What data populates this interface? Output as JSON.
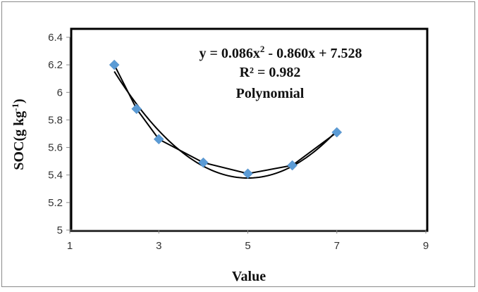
{
  "chart_data": {
    "type": "scatter",
    "xlabel": "Value",
    "ylabel_base": "SOC(g kg",
    "ylabel_exp": "-1",
    "ylabel_tail": ")",
    "xlim": [
      1,
      9
    ],
    "ylim": [
      5,
      6.4
    ],
    "x_ticks": [
      "1",
      "3",
      "5",
      "7",
      "9"
    ],
    "y_ticks": [
      "5",
      "5.2",
      "5.4",
      "5.6",
      "5.8",
      "6",
      "6.2",
      "6.4"
    ],
    "grid": false,
    "series": [
      {
        "x": [
          2,
          2.5,
          3,
          4,
          5,
          6,
          7
        ],
        "y": [
          6.2,
          5.88,
          5.66,
          5.49,
          5.41,
          5.47,
          5.71
        ],
        "marker": "diamond",
        "color": "#5b9bd5",
        "line": "connected"
      }
    ],
    "trendline": {
      "type": "polynomial",
      "coefficients": [
        0.086,
        -0.86,
        7.528
      ],
      "color": "#000000"
    },
    "annotations": {
      "equation_pre": "y = 0.086x",
      "equation_sup": "2",
      "equation_post": " - 0.860x + 7.528",
      "r2": "R² = 0.982",
      "label": "Polynomial"
    }
  }
}
